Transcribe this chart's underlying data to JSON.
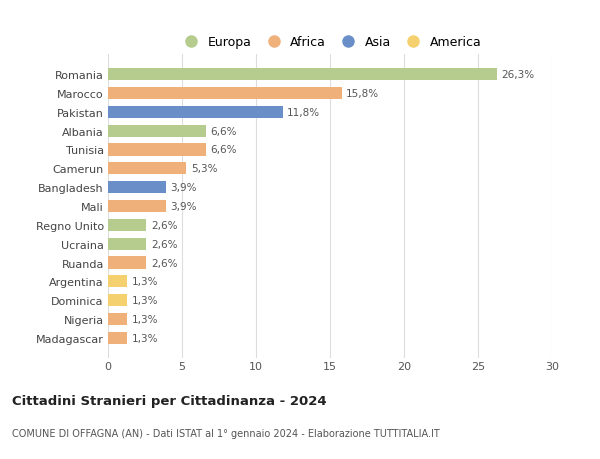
{
  "countries": [
    "Romania",
    "Marocco",
    "Pakistan",
    "Albania",
    "Tunisia",
    "Camerun",
    "Bangladesh",
    "Mali",
    "Regno Unito",
    "Ucraina",
    "Ruanda",
    "Argentina",
    "Dominica",
    "Nigeria",
    "Madagascar"
  ],
  "values": [
    26.3,
    15.8,
    11.8,
    6.6,
    6.6,
    5.3,
    3.9,
    3.9,
    2.6,
    2.6,
    2.6,
    1.3,
    1.3,
    1.3,
    1.3
  ],
  "labels": [
    "26,3%",
    "15,8%",
    "11,8%",
    "6,6%",
    "6,6%",
    "5,3%",
    "3,9%",
    "3,9%",
    "2,6%",
    "2,6%",
    "2,6%",
    "1,3%",
    "1,3%",
    "1,3%",
    "1,3%"
  ],
  "continents": [
    "Europa",
    "Africa",
    "Asia",
    "Europa",
    "Africa",
    "Africa",
    "Asia",
    "Africa",
    "Europa",
    "Europa",
    "Africa",
    "America",
    "America",
    "Africa",
    "Africa"
  ],
  "colors": {
    "Europa": "#b5cc8e",
    "Africa": "#f0b07a",
    "Asia": "#6a8fc8",
    "America": "#f5d06e"
  },
  "title": "Cittadini Stranieri per Cittadinanza - 2024",
  "subtitle": "COMUNE DI OFFAGNA (AN) - Dati ISTAT al 1° gennaio 2024 - Elaborazione TUTTITALIA.IT",
  "xlim": [
    0,
    30
  ],
  "xticks": [
    0,
    5,
    10,
    15,
    20,
    25,
    30
  ],
  "background_color": "#ffffff",
  "grid_color": "#dddddd",
  "legend_order": [
    "Europa",
    "Africa",
    "Asia",
    "America"
  ]
}
